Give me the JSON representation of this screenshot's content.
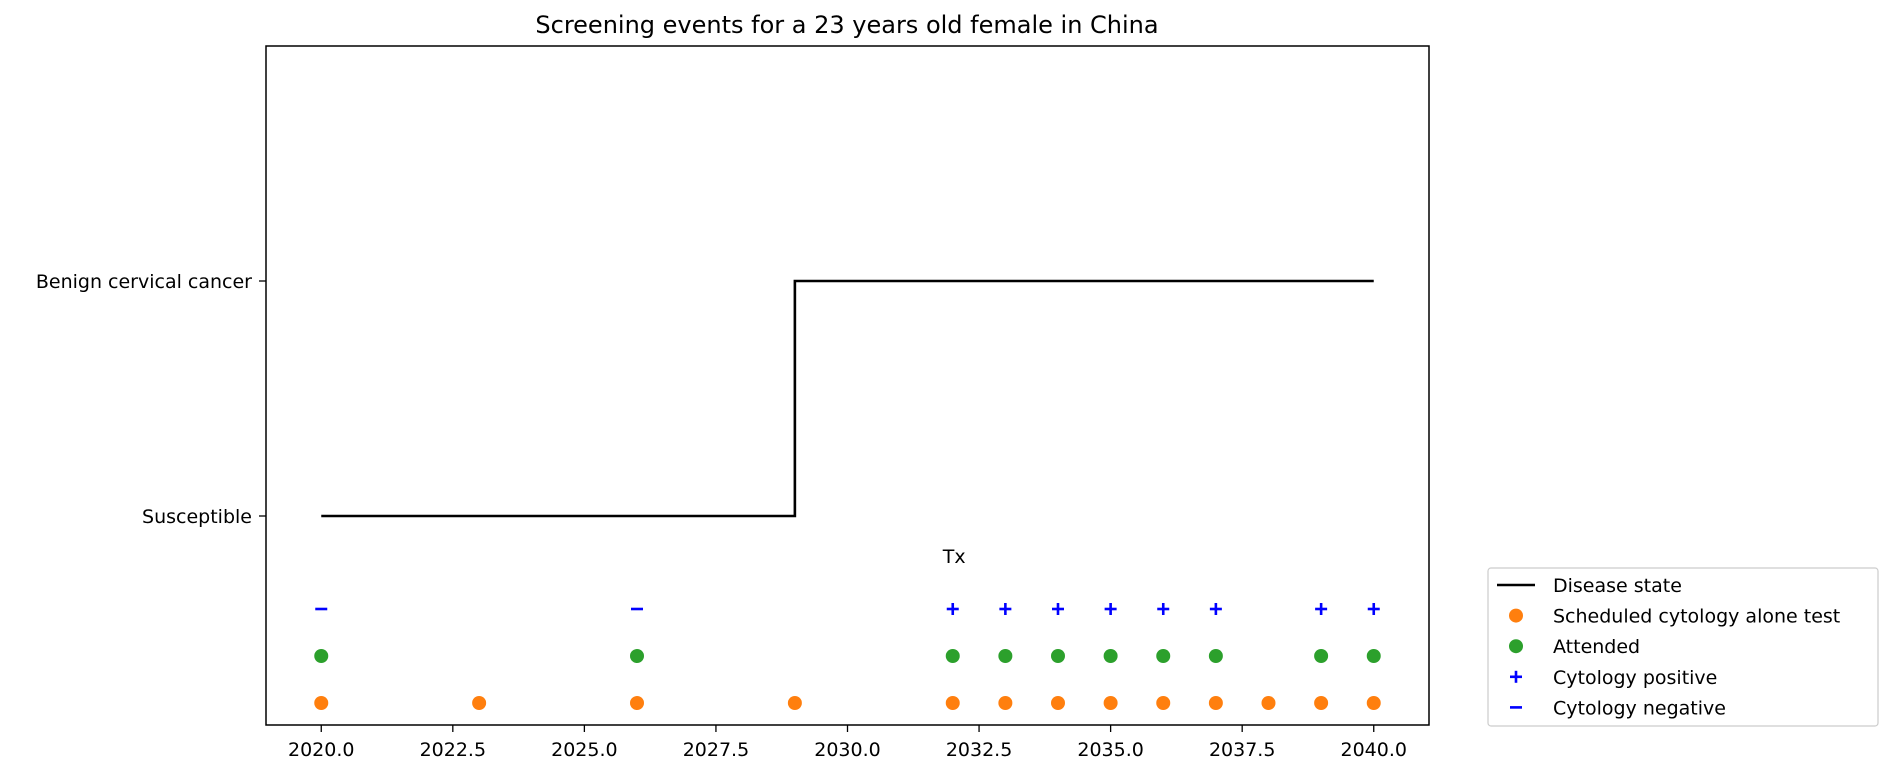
{
  "chart_data": {
    "type": "line",
    "title": "Screening events for a 23 years old female in China",
    "xlabel": "",
    "ylabel": "",
    "xlim": [
      2018.95,
      2041.05
    ],
    "x_ticks": [
      "2020.0",
      "2022.5",
      "2025.0",
      "2027.5",
      "2030.0",
      "2032.5",
      "2035.0",
      "2037.5",
      "2040.0"
    ],
    "y_ticks": [
      "Susceptible",
      "Benign cervical cancer"
    ],
    "grid": false,
    "legend_position": "outside-bottom-right",
    "series": [
      {
        "name": "Disease state",
        "kind": "step",
        "color": "#000000",
        "points": [
          {
            "x": 2020,
            "state": "Susceptible"
          },
          {
            "x": 2029,
            "state": "Susceptible"
          },
          {
            "x": 2029,
            "state": "Benign cervical cancer"
          },
          {
            "x": 2040,
            "state": "Benign cervical cancer"
          }
        ]
      },
      {
        "name": "Scheduled cytology alone test",
        "kind": "dots",
        "color": "#ff7f0e",
        "x": [
          2020,
          2023,
          2026,
          2029,
          2032,
          2033,
          2034,
          2035,
          2036,
          2037,
          2038,
          2039,
          2040
        ]
      },
      {
        "name": "Attended",
        "kind": "dots",
        "color": "#2ca02c",
        "x": [
          2020,
          2026,
          2032,
          2033,
          2034,
          2035,
          2036,
          2037,
          2039,
          2040
        ]
      },
      {
        "name": "Cytology positive",
        "kind": "plus",
        "color": "#0000ff",
        "x": [
          2032,
          2033,
          2034,
          2035,
          2036,
          2037,
          2039,
          2040
        ]
      },
      {
        "name": "Cytology negative",
        "kind": "minus",
        "color": "#0000ff",
        "x": [
          2020,
          2026
        ]
      }
    ],
    "annotations": [
      {
        "text": "Tx",
        "x": 2032
      }
    ]
  }
}
